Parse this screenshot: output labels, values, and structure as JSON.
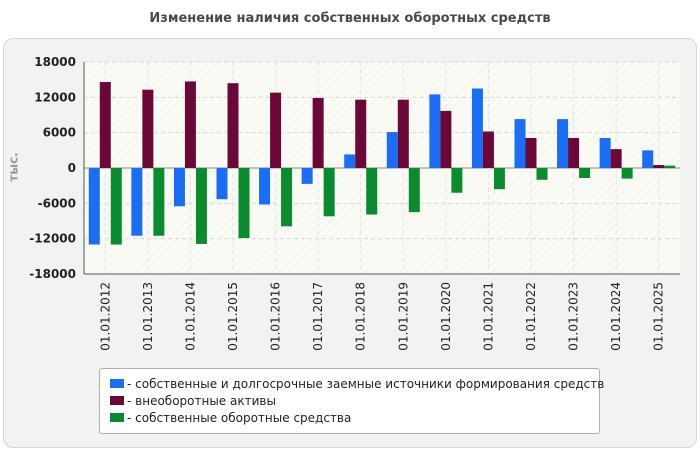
{
  "chart_data": {
    "type": "bar",
    "title": "Изменение наличия собственных оборотных средств",
    "ylabel": "тыс.",
    "xlabel": "",
    "ylim": [
      -18000,
      18000
    ],
    "yticks": [
      18000,
      12000,
      6000,
      0,
      -6000,
      -12000,
      -18000
    ],
    "grid": true,
    "legend_position": "bottom",
    "categories": [
      "01.01.2012",
      "01.01.2013",
      "01.01.2014",
      "01.01.2015",
      "01.01.2016",
      "01.01.2017",
      "01.01.2018",
      "01.01.2019",
      "01.01.2020",
      "01.01.2021",
      "01.01.2022",
      "01.01.2023",
      "01.01.2024",
      "01.01.2025"
    ],
    "series": [
      {
        "name": "- собственные и долгосрочные заемные источники формирования средств",
        "color": "#1a6ef5",
        "values": [
          -13000,
          -11500,
          -6500,
          -5300,
          -6200,
          -2700,
          2300,
          6100,
          12500,
          13500,
          8300,
          8300,
          5100,
          3000
        ]
      },
      {
        "name": "- внеоборотные активы",
        "color": "#6b0838",
        "values": [
          14600,
          13300,
          14700,
          14400,
          12800,
          11900,
          11600,
          11600,
          9700,
          6200,
          5100,
          5100,
          3200,
          500
        ]
      },
      {
        "name": "- собственные оборотные средства",
        "color": "#0a8c2e",
        "values": [
          -13000,
          -11500,
          -12900,
          -11900,
          -9900,
          -8200,
          -7900,
          -7500,
          -4200,
          -3600,
          -2000,
          -1700,
          -1800,
          400
        ]
      }
    ]
  }
}
